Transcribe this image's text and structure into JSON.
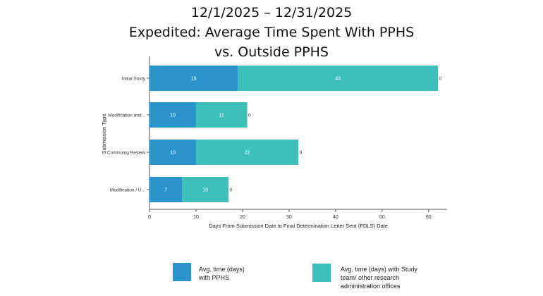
{
  "title_lines": [
    "12/1/2025 – 12/31/2025",
    "Expedited: Average Time Spent With PPHS",
    "vs. Outside PPHS"
  ],
  "chart_data": {
    "type": "bar",
    "orientation": "horizontal",
    "stacked": true,
    "categories": [
      "Initial Study",
      "Modification and...",
      "Continuing Review",
      "Modification / U..."
    ],
    "series": [
      {
        "name": "Avg. time (days) with PPHS",
        "color": "#2b94cc",
        "values": [
          19,
          10,
          10,
          7
        ]
      },
      {
        "name": "Avg. time (days) with Study team/ other research administration offices",
        "color": "#3dbfbc",
        "values": [
          43,
          11,
          22,
          10
        ]
      }
    ],
    "totals_label": [
      0,
      0,
      0,
      0
    ],
    "xlabel": "Days From Submission Date to Final Determination Letter Sent (FDLS) Date",
    "ylabel": "Submission Type",
    "xlim": [
      0,
      65
    ],
    "xticks": [
      0,
      10,
      20,
      30,
      40,
      50,
      60
    ],
    "grid": false,
    "legend_position": "bottom"
  },
  "legend": [
    {
      "lines": [
        "Avg. time (days)",
        "with PPHS"
      ],
      "color": "#2b94cc"
    },
    {
      "lines": [
        "Avg. time (days) with Study",
        "team/ other research",
        "administration offices"
      ],
      "color": "#3dbfbc"
    }
  ]
}
